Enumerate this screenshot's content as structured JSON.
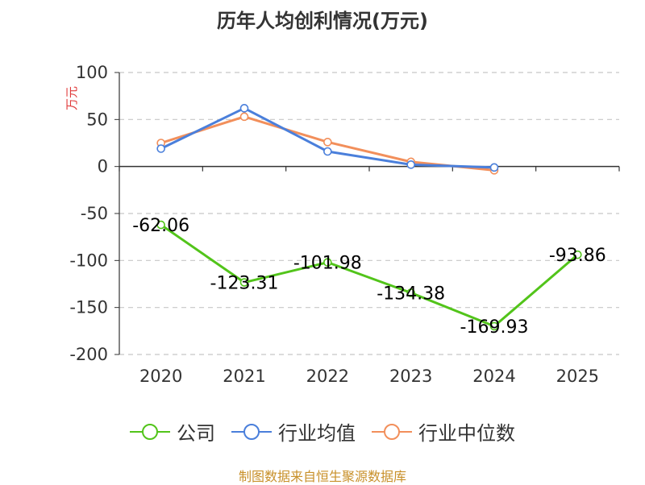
{
  "title": "历年人均创利情况(万元)",
  "unit_label": "万元",
  "source": "制图数据来自恒生聚源数据库",
  "colors": {
    "company": "#52c41a",
    "industry_avg": "#4a7fdb",
    "industry_median": "#f28f5b",
    "source_text": "#c8902a",
    "grid": "#c8c8c8",
    "axis": "#333333"
  },
  "chart_data": {
    "type": "line",
    "title": "历年人均创利情况(万元)",
    "ylabel": "万元",
    "xlabel": "",
    "categories": [
      "2020",
      "2021",
      "2022",
      "2023",
      "2024",
      "2025"
    ],
    "ylim": [
      -200,
      100
    ],
    "yticks": [
      100,
      50,
      0,
      -50,
      -100,
      -150,
      -200
    ],
    "grid": true,
    "legend_position": "bottom",
    "series": [
      {
        "name": "公司",
        "color": "#52c41a",
        "values": [
          -62.06,
          -123.31,
          -101.98,
          -134.38,
          -169.93,
          -93.86
        ],
        "labels": [
          "-62.06",
          "-123.31",
          "-101.98",
          "-134.38",
          "-169.93",
          "-93.86"
        ]
      },
      {
        "name": "行业均值",
        "color": "#4a7fdb",
        "values": [
          19,
          62,
          16,
          2,
          -1,
          null
        ]
      },
      {
        "name": "行业中位数",
        "color": "#f28f5b",
        "values": [
          25,
          53,
          26,
          5,
          -4,
          null
        ]
      }
    ]
  },
  "legend": [
    {
      "label": "公司",
      "color": "#52c41a"
    },
    {
      "label": "行业均值",
      "color": "#4a7fdb"
    },
    {
      "label": "行业中位数",
      "color": "#f28f5b"
    }
  ]
}
